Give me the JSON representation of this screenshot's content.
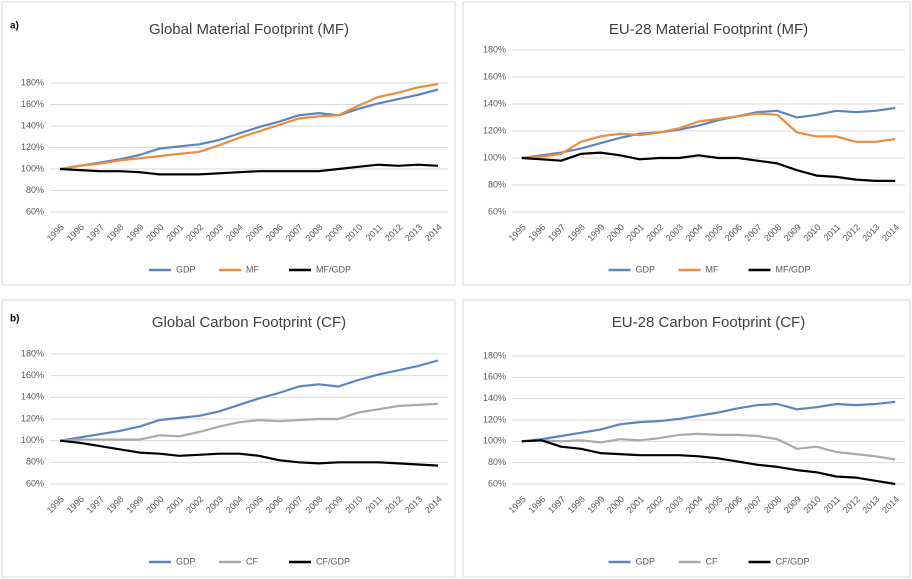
{
  "chart_data": [
    {
      "type": "line",
      "panel_label": "a)",
      "title": "Global Material Footprint (MF)",
      "categories": [
        "1995",
        "1996",
        "1997",
        "1998",
        "1999",
        "2000",
        "2001",
        "2002",
        "2003",
        "2004",
        "2005",
        "2006",
        "2007",
        "2008",
        "2009",
        "2010",
        "2011",
        "2012",
        "2013",
        "2014"
      ],
      "series": [
        {
          "name": "GDP",
          "color": "#5b84c4",
          "values": [
            100,
            103,
            106,
            109,
            113,
            119,
            121,
            123,
            127,
            133,
            139,
            144,
            150,
            152,
            150,
            156,
            161,
            165,
            169,
            174
          ]
        },
        {
          "name": "MF",
          "color": "#ed8c3a",
          "values": [
            100,
            103,
            105,
            108,
            110,
            112,
            114,
            116,
            122,
            129,
            135,
            141,
            147,
            149,
            150,
            159,
            167,
            171,
            176,
            179
          ]
        },
        {
          "name": "MF/GDP",
          "color": "#000000",
          "values": [
            100,
            99,
            98,
            98,
            97,
            95,
            95,
            95,
            96,
            97,
            98,
            98,
            98,
            98,
            100,
            102,
            104,
            103,
            104,
            103
          ]
        }
      ],
      "ylim": [
        60,
        180
      ],
      "yticks": [
        {
          "value": 60,
          "label": "60%"
        },
        {
          "value": 80,
          "label": "80%"
        },
        {
          "value": 100,
          "label": "100%"
        },
        {
          "value": 120,
          "label": "120%"
        },
        {
          "value": 140,
          "label": "140%"
        },
        {
          "value": 160,
          "label": "160%"
        },
        {
          "value": 180,
          "label": "180%"
        }
      ],
      "grid": true,
      "legend": "bottom"
    },
    {
      "type": "line",
      "title": "EU-28 Material Footprint (MF)",
      "categories": [
        "1995",
        "1996",
        "1997",
        "1998",
        "1999",
        "2000",
        "2001",
        "2002",
        "2003",
        "2004",
        "2005",
        "2006",
        "2007",
        "2008",
        "2009",
        "2010",
        "2011",
        "2012",
        "2013",
        "2014"
      ],
      "series": [
        {
          "name": "GDP",
          "color": "#5b84c4",
          "values": [
            100,
            102,
            104,
            107,
            111,
            115,
            118,
            119,
            121,
            124,
            128,
            131,
            134,
            135,
            130,
            132,
            135,
            134,
            135,
            137
          ]
        },
        {
          "name": "MF",
          "color": "#ed8c3a",
          "values": [
            100,
            101,
            103,
            112,
            116,
            118,
            117,
            119,
            122,
            127,
            129,
            131,
            133,
            132,
            119,
            116,
            116,
            112,
            112,
            114
          ]
        },
        {
          "name": "MF/GDP",
          "color": "#000000",
          "values": [
            100,
            99,
            98,
            103,
            104,
            102,
            99,
            100,
            100,
            102,
            100,
            100,
            98,
            96,
            91,
            87,
            86,
            84,
            83,
            83
          ]
        }
      ],
      "ylim": [
        60,
        180
      ],
      "yticks": [
        {
          "value": 60,
          "label": "60%"
        },
        {
          "value": 80,
          "label": "80%"
        },
        {
          "value": 100,
          "label": "100%"
        },
        {
          "value": 120,
          "label": "120%"
        },
        {
          "value": 140,
          "label": "140%"
        },
        {
          "value": 160,
          "label": "160%"
        },
        {
          "value": 180,
          "label": "180%"
        }
      ],
      "grid": true,
      "legend": "bottom"
    },
    {
      "type": "line",
      "panel_label": "b)",
      "title": "Global Carbon Footprint (CF)",
      "categories": [
        "1995",
        "1996",
        "1997",
        "1998",
        "1999",
        "2000",
        "2001",
        "2002",
        "2003",
        "2004",
        "2005",
        "2006",
        "2007",
        "2008",
        "2009",
        "2010",
        "2011",
        "2012",
        "2013",
        "2014"
      ],
      "series": [
        {
          "name": "GDP",
          "color": "#5b84c4",
          "values": [
            100,
            103,
            106,
            109,
            113,
            119,
            121,
            123,
            127,
            133,
            139,
            144,
            150,
            152,
            150,
            156,
            161,
            165,
            169,
            174
          ]
        },
        {
          "name": "CF",
          "color": "#a9a9a9",
          "values": [
            100,
            101,
            101,
            101,
            101,
            105,
            104,
            108,
            113,
            117,
            119,
            118,
            119,
            120,
            120,
            126,
            129,
            132,
            133,
            134
          ]
        },
        {
          "name": "CF/GDP",
          "color": "#000000",
          "values": [
            100,
            98,
            95,
            92,
            89,
            88,
            86,
            87,
            88,
            88,
            86,
            82,
            80,
            79,
            80,
            80,
            80,
            79,
            78,
            77
          ]
        }
      ],
      "ylim": [
        60,
        180
      ],
      "yticks": [
        {
          "value": 60,
          "label": "60%"
        },
        {
          "value": 80,
          "label": "80%"
        },
        {
          "value": 100,
          "label": "100%"
        },
        {
          "value": 120,
          "label": "120%"
        },
        {
          "value": 140,
          "label": "140%"
        },
        {
          "value": 160,
          "label": "160%"
        },
        {
          "value": 180,
          "label": "180%"
        }
      ],
      "grid": true,
      "legend": "bottom"
    },
    {
      "type": "line",
      "title": "EU-28 Carbon Footprint (CF)",
      "categories": [
        "1995",
        "1996",
        "1997",
        "1998",
        "1999",
        "2000",
        "2001",
        "2002",
        "2003",
        "2004",
        "2005",
        "2006",
        "2007",
        "2008",
        "2009",
        "2010",
        "2011",
        "2012",
        "2013",
        "2014"
      ],
      "series": [
        {
          "name": "GDP",
          "color": "#5b84c4",
          "values": [
            100,
            102,
            105,
            108,
            111,
            116,
            118,
            119,
            121,
            124,
            127,
            131,
            134,
            135,
            130,
            132,
            135,
            134,
            135,
            137
          ]
        },
        {
          "name": "CF",
          "color": "#a9a9a9",
          "values": [
            100,
            101,
            100,
            101,
            99,
            102,
            101,
            103,
            106,
            107,
            106,
            106,
            105,
            102,
            93,
            95,
            90,
            88,
            86,
            83
          ]
        },
        {
          "name": "CF/GDP",
          "color": "#000000",
          "values": [
            100,
            101,
            95,
            93,
            89,
            88,
            87,
            87,
            87,
            86,
            84,
            81,
            78,
            76,
            73,
            71,
            67,
            66,
            63,
            60
          ]
        }
      ],
      "ylim": [
        60,
        180
      ],
      "yticks": [
        {
          "value": 60,
          "label": "60%"
        },
        {
          "value": 80,
          "label": "80%"
        },
        {
          "value": 100,
          "label": "100%"
        },
        {
          "value": 120,
          "label": "120%"
        },
        {
          "value": 140,
          "label": "140%"
        },
        {
          "value": 160,
          "label": "160%"
        },
        {
          "value": 180,
          "label": "180%"
        }
      ],
      "grid": true,
      "legend": "bottom"
    }
  ]
}
